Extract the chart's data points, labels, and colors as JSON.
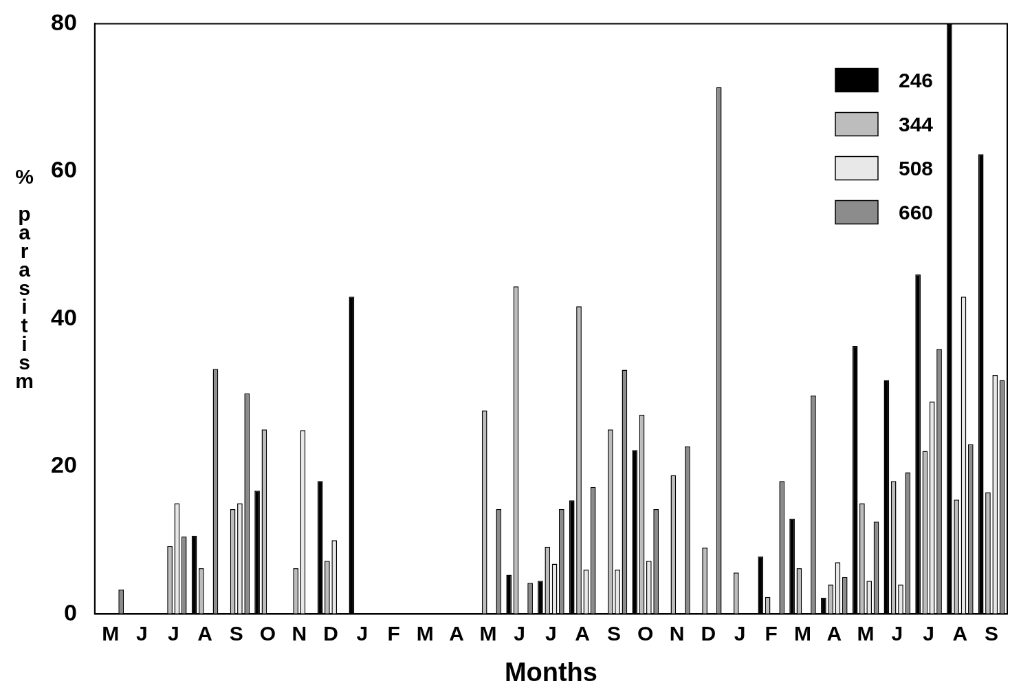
{
  "chart_data": {
    "type": "bar",
    "xlabel": "Months",
    "ylabel": "% parasitism",
    "categories": [
      "M",
      "J",
      "J",
      "A",
      "S",
      "O",
      "N",
      "D",
      "J",
      "F",
      "M",
      "A",
      "M",
      "J",
      "J",
      "A",
      "S",
      "O",
      "N",
      "D",
      "J",
      "F",
      "M",
      "A",
      "M",
      "J",
      "J",
      "A",
      "S"
    ],
    "series": [
      {
        "name": "246",
        "color": "#000000",
        "values": [
          null,
          null,
          null,
          10.6,
          null,
          16.7,
          null,
          18,
          43,
          null,
          null,
          null,
          null,
          5.3,
          4.5,
          15.4,
          null,
          22.2,
          null,
          null,
          null,
          7.8,
          12.9,
          2.2,
          36.3,
          31.7,
          46,
          80,
          62.3
        ]
      },
      {
        "name": "344",
        "color": "#bdbdbd",
        "values": [
          null,
          null,
          9.2,
          6.2,
          14.2,
          25,
          6.2,
          7.2,
          null,
          null,
          null,
          null,
          27.6,
          44.4,
          9.1,
          41.7,
          25,
          27,
          18.8,
          9,
          5.6,
          2.3,
          6.2,
          4,
          15,
          18,
          22.1,
          15.5,
          16.5
        ]
      },
      {
        "name": "508",
        "color": "#e8e8e8",
        "values": [
          null,
          null,
          15,
          null,
          15,
          null,
          24.9,
          10,
          null,
          null,
          null,
          null,
          null,
          null,
          6.8,
          6,
          6,
          7.2,
          null,
          null,
          null,
          null,
          null,
          7,
          4.5,
          4,
          28.8,
          43,
          32.4
        ]
      },
      {
        "name": "660",
        "color": "#8c8c8c",
        "values": [
          3.3,
          null,
          10.5,
          33.2,
          29.9,
          null,
          null,
          null,
          null,
          null,
          null,
          null,
          14.2,
          4.2,
          14.2,
          17.2,
          33.1,
          14.2,
          22.7,
          71.4,
          null,
          18,
          29.6,
          5,
          12.5,
          19.2,
          35.9,
          23,
          31.7
        ]
      }
    ],
    "ylim": [
      0,
      80
    ],
    "yticks": [
      0,
      20,
      40,
      60,
      80
    ],
    "grid": false,
    "legend": "top right"
  }
}
